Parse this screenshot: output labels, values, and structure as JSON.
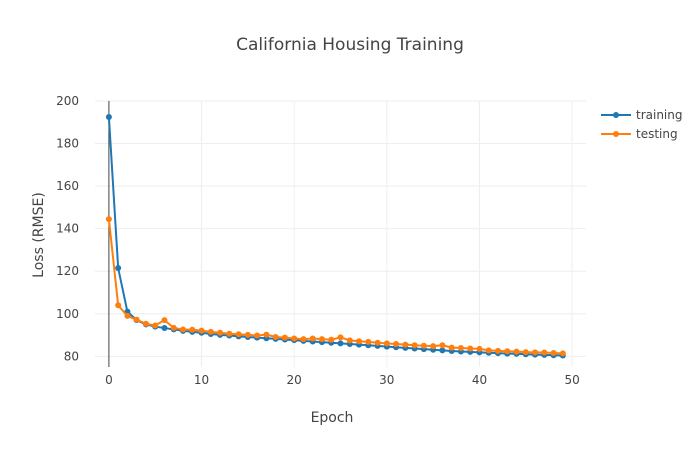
{
  "chart_data": {
    "type": "line",
    "title": "California Housing Training",
    "xlabel": "Epoch",
    "ylabel": "Loss (RMSE)",
    "xlim": [
      -1.5,
      51.5
    ],
    "ylim": [
      75,
      200
    ],
    "xticks": [
      0,
      10,
      20,
      30,
      40,
      50
    ],
    "yticks": [
      80,
      100,
      120,
      140,
      160,
      180,
      200
    ],
    "grid": true,
    "legend_position": "top-right",
    "series": [
      {
        "name": "training",
        "color": "#1f77b4",
        "x": [
          0,
          1,
          2,
          3,
          4,
          5,
          6,
          7,
          8,
          9,
          10,
          11,
          12,
          13,
          14,
          15,
          16,
          17,
          18,
          19,
          20,
          21,
          22,
          23,
          24,
          25,
          26,
          27,
          28,
          29,
          30,
          31,
          32,
          33,
          34,
          35,
          36,
          37,
          38,
          39,
          40,
          41,
          42,
          43,
          44,
          45,
          46,
          47,
          48,
          49
        ],
        "values": [
          192.5,
          121.5,
          101,
          97,
          95,
          94,
          93.3,
          92.7,
          92,
          91.5,
          91.1,
          90.5,
          90.1,
          89.8,
          89.4,
          89.1,
          88.8,
          88.5,
          88.2,
          87.9,
          87.6,
          87.3,
          87,
          86.7,
          86.4,
          86.1,
          85.8,
          85.5,
          85.2,
          84.9,
          84.6,
          84.3,
          84,
          83.7,
          83.4,
          83.1,
          82.8,
          82.5,
          82.3,
          82.1,
          81.9,
          81.7,
          81.5,
          81.3,
          81.2,
          81,
          80.8,
          80.7,
          80.5,
          80.4
        ]
      },
      {
        "name": "testing",
        "color": "#ff7f0e",
        "x": [
          0,
          1,
          2,
          3,
          4,
          5,
          6,
          7,
          8,
          9,
          10,
          11,
          12,
          13,
          14,
          15,
          16,
          17,
          18,
          19,
          20,
          21,
          22,
          23,
          24,
          25,
          26,
          27,
          28,
          29,
          30,
          31,
          32,
          33,
          34,
          35,
          36,
          37,
          38,
          39,
          40,
          41,
          42,
          43,
          44,
          45,
          46,
          47,
          48,
          49
        ],
        "values": [
          144.5,
          104,
          99,
          97.2,
          95.3,
          94.5,
          97,
          93.4,
          92.6,
          92.5,
          92.1,
          91.5,
          91.1,
          90.6,
          90.4,
          90.1,
          89.8,
          90.2,
          89.1,
          88.8,
          88.4,
          88.1,
          88.4,
          88.1,
          87.8,
          88.9,
          87.5,
          87.1,
          86.8,
          86.4,
          86.1,
          85.8,
          85.5,
          85.2,
          85,
          84.8,
          85.2,
          84.1,
          83.9,
          83.7,
          83.5,
          82.8,
          82.6,
          82.4,
          82.2,
          82,
          81.9,
          81.8,
          81.6,
          81.4
        ]
      }
    ]
  }
}
